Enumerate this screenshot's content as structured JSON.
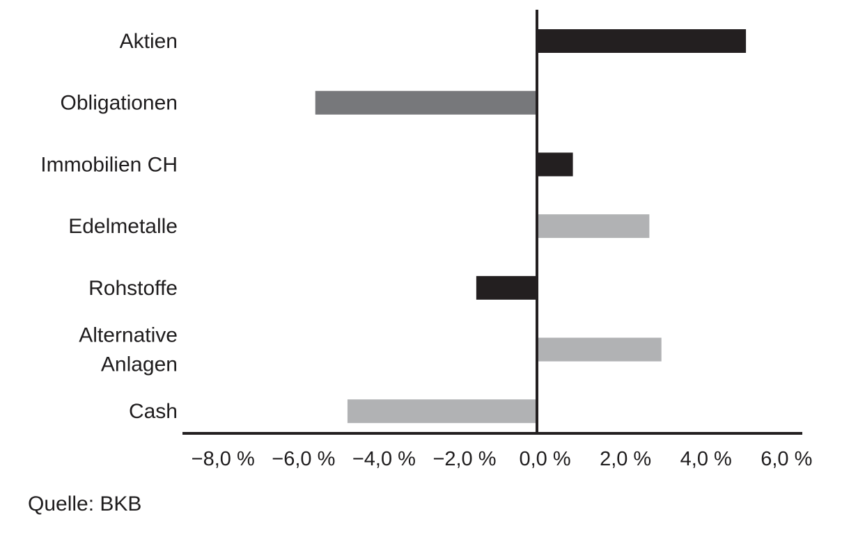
{
  "chart_data": {
    "type": "bar",
    "orientation": "horizontal",
    "categories": [
      [
        "Aktien"
      ],
      [
        "Obligationen"
      ],
      [
        "Immobilien CH"
      ],
      [
        "Edelmetalle"
      ],
      [
        "Rohstoffe"
      ],
      [
        "Alternative",
        "Anlagen"
      ],
      [
        "Cash"
      ]
    ],
    "values": [
      5.2,
      -5.5,
      0.9,
      2.8,
      -1.5,
      3.1,
      -4.7
    ],
    "bar_colors": [
      "#231f20",
      "#77787b",
      "#231f20",
      "#b1b2b4",
      "#231f20",
      "#b1b2b4",
      "#b1b2b4"
    ],
    "xlim": [
      -8.8,
      6.6
    ],
    "xticks": [
      -8,
      -6,
      -4,
      -2,
      0,
      2,
      4,
      6
    ],
    "xtick_labels": [
      "−8,0 %",
      "−6,0 %",
      "−4,0 %",
      "−2,0 %",
      "0,0 %",
      "2,0 %",
      "4,0 %",
      "6,0 %"
    ],
    "grid": false,
    "legend": "none"
  },
  "source": "Quelle: BKB"
}
